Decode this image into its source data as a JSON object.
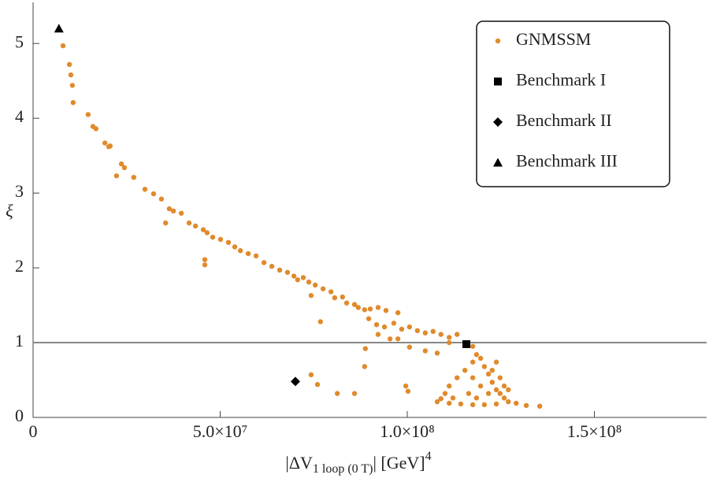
{
  "chart_data": {
    "type": "scatter",
    "xlabel": {
      "main": "|ΔV",
      "sub": "1 loop (0 T)",
      "rest": "| [GeV]",
      "sup": "4"
    },
    "ylabel": "ξ",
    "xlim": [
      0,
      180000000.0
    ],
    "ylim": [
      0,
      5.55
    ],
    "xticks": [
      0,
      {
        "value": 50000000.0,
        "label": "5.0×10⁷"
      },
      {
        "value": 100000000.0,
        "label": "1.0×10⁸"
      },
      {
        "value": 150000000.0,
        "label": "1.5×10⁸"
      }
    ],
    "yticks": [
      0,
      1,
      2,
      3,
      4,
      5
    ],
    "hline": 1,
    "legend": "top-right",
    "series": [
      {
        "name": "GNMSSM",
        "color": "#e08a2c",
        "marker": "circle",
        "x": [
          8000000.0,
          9700000.0,
          10100000.0,
          10500000.0,
          10700000.0,
          14700000.0,
          16000000.0,
          16800000.0,
          19200000.0,
          20200000.0,
          20600000.0,
          22300000.0,
          23600000.0,
          24400000.0,
          26900000.0,
          29900000.0,
          32200000.0,
          34300000.0,
          36400000.0,
          37500000.0,
          39600000.0,
          35400000.0,
          41700000.0,
          43400000.0,
          45500000.0,
          46500000.0,
          48000000.0,
          45900000.0,
          45900000.0,
          50100000.0,
          52200000.0,
          53900000.0,
          55400000.0,
          57500000.0,
          59600000.0,
          61700000.0,
          63800000.0,
          65900000.0,
          68000000.0,
          69700000.0,
          70700000.0,
          72200000.0,
          73700000.0,
          75400000.0,
          74300000.0,
          77500000.0,
          79600000.0,
          80600000.0,
          82700000.0,
          83800000.0,
          85900000.0,
          86900000.0,
          88600000.0,
          90100000.0,
          92200000.0,
          94300000.0,
          97500000.0,
          89700000.0,
          91800000.0,
          93900000.0,
          96400000.0,
          98500000.0,
          100600000.0,
          102700000.0,
          104800000.0,
          106900000.0,
          109000000.0,
          111200000.0,
          113300000.0,
          92200000.0,
          95400000.0,
          97500000.0,
          100600000.0,
          104800000.0,
          108000000.0,
          111200000.0,
          117500000.0,
          118500000.0,
          119600000.0,
          120600000.0,
          121700000.0,
          122700000.0,
          123800000.0,
          124800000.0,
          125900000.0,
          127000000.0,
          129100000.0,
          131800000.0,
          135400000.0,
          117500000.0,
          115400000.0,
          113300000.0,
          111200000.0,
          110100000.0,
          112200000.0,
          109000000.0,
          108000000.0,
          111200000.0,
          114300000.0,
          117500000.0,
          120600000.0,
          123800000.0,
          121700000.0,
          119600000.0,
          117500000.0,
          122700000.0,
          124800000.0,
          125900000.0,
          127000000.0,
          123800000.0,
          116400000.0,
          118500000.0,
          88800000.0,
          88600000.0,
          74300000.0,
          76000000.0,
          81300000.0,
          85900000.0,
          99600000.0,
          100200000.0,
          76800000.0
        ],
        "values": [
          4.97,
          4.72,
          4.58,
          4.44,
          4.21,
          4.05,
          3.89,
          3.86,
          3.67,
          3.62,
          3.63,
          3.23,
          3.39,
          3.34,
          3.21,
          3.05,
          2.99,
          2.92,
          2.79,
          2.76,
          2.73,
          2.6,
          2.6,
          2.56,
          2.51,
          2.47,
          2.41,
          2.11,
          2.04,
          2.38,
          2.34,
          2.28,
          2.23,
          2.19,
          2.16,
          2.07,
          2.02,
          1.97,
          1.94,
          1.89,
          1.84,
          1.87,
          1.81,
          1.77,
          1.63,
          1.72,
          1.68,
          1.6,
          1.61,
          1.53,
          1.51,
          1.47,
          1.44,
          1.45,
          1.47,
          1.43,
          1.4,
          1.32,
          1.24,
          1.21,
          1.26,
          1.18,
          1.21,
          1.16,
          1.13,
          1.15,
          1.11,
          1.07,
          1.11,
          1.11,
          1.05,
          1.05,
          0.94,
          0.89,
          0.86,
          1.0,
          0.95,
          0.84,
          0.79,
          0.68,
          0.58,
          0.47,
          0.37,
          0.32,
          0.26,
          0.21,
          0.19,
          0.16,
          0.15,
          0.74,
          0.63,
          0.53,
          0.42,
          0.32,
          0.26,
          0.25,
          0.21,
          0.19,
          0.18,
          0.17,
          0.17,
          0.18,
          0.32,
          0.42,
          0.53,
          0.63,
          0.53,
          0.42,
          0.37,
          0.74,
          0.32,
          0.26,
          0.92,
          0.68,
          0.57,
          0.44,
          0.32,
          0.32,
          0.42,
          0.35,
          1.28
        ]
      },
      {
        "name": "Benchmark I",
        "color": "#000000",
        "marker": "square",
        "x": [
          115800000.0
        ],
        "values": [
          0.98
        ]
      },
      {
        "name": "Benchmark II",
        "color": "#000000",
        "marker": "diamond",
        "x": [
          70100000.0
        ],
        "values": [
          0.48
        ]
      },
      {
        "name": "Benchmark III",
        "color": "#000000",
        "marker": "triangle",
        "x": [
          6900000.0
        ],
        "values": [
          5.2
        ]
      }
    ]
  }
}
